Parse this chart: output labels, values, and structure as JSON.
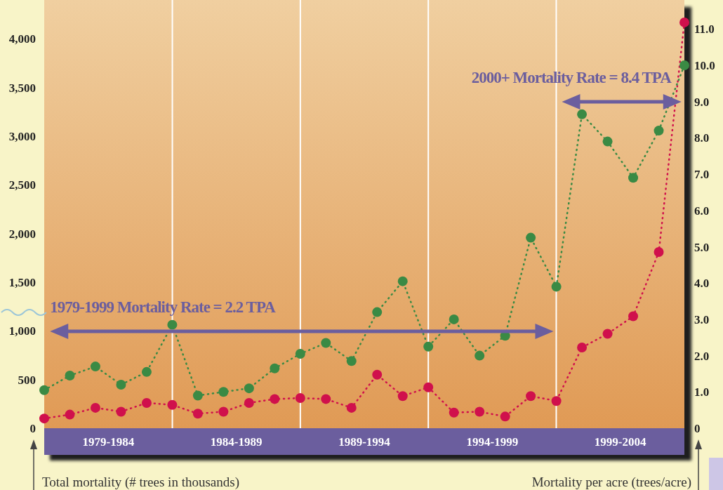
{
  "chart_data": {
    "type": "line",
    "categories": [
      null,
      null,
      null,
      null,
      null,
      null,
      null,
      null,
      null,
      null,
      null,
      null,
      null,
      null,
      null,
      null,
      null,
      null,
      null,
      null,
      null,
      null,
      null,
      null,
      null,
      null
    ],
    "series": [
      {
        "color": "#d0104c",
        "values": [
          100,
          140,
          210,
          170,
          260,
          240,
          150,
          170,
          260,
          300,
          310,
          300,
          210,
          550,
          330,
          420,
          160,
          170,
          120,
          330,
          280,
          830,
          970,
          1150,
          1810,
          4170
        ]
      },
      {
        "color": "#3a8a44",
        "axis": "y2",
        "values": [
          1.05,
          1.45,
          1.7,
          1.2,
          1.55,
          2.85,
          0.9,
          1.0,
          1.1,
          1.65,
          2.05,
          2.35,
          1.85,
          3.2,
          4.05,
          2.25,
          3.0,
          2.0,
          2.55,
          5.25,
          3.9,
          8.65,
          7.9,
          6.9,
          8.2,
          10.0
        ]
      }
    ],
    "ylim": [
      0,
      4400
    ],
    "yticks": [
      0,
      {
        "value": 500,
        "label": "500"
      },
      {
        "value": 1000,
        "label": "1,000"
      },
      {
        "value": 1500,
        "label": "1,500"
      },
      {
        "value": 2000,
        "label": "2,000"
      },
      {
        "value": 2500,
        "label": "2,500"
      },
      {
        "value": 3000,
        "label": "3,000"
      },
      {
        "value": 3500,
        "label": "3,500"
      },
      {
        "value": 4000,
        "label": "4,000"
      }
    ],
    "y2lim": [
      0,
      11.8
    ],
    "y2ticks": [
      0,
      {
        "value": 1,
        "label": "1.0"
      },
      {
        "value": 2,
        "label": "2.0"
      },
      {
        "value": 3,
        "label": "3.0"
      },
      {
        "value": 4,
        "label": "4.0"
      },
      {
        "value": 5,
        "label": "5.0"
      },
      {
        "value": 6,
        "label": "6.0"
      },
      {
        "value": 7,
        "label": "7.0"
      },
      {
        "value": 8,
        "label": "8.0"
      },
      {
        "value": 9,
        "label": "9.0"
      },
      {
        "value": 10,
        "label": "10.0"
      },
      {
        "value": 11,
        "label": "11.0"
      }
    ],
    "annotations": [
      "1979-1984",
      "1984-1989",
      "1989-1994",
      "1994-1999",
      "1999-2004",
      "1979-1999 Mortality Rate = 2.2 TPA",
      "2000+ Mortality Rate = 8.4 TPA",
      "Total mortality (# trees in thousands)",
      "Mortality per acre (trees/acre)"
    ],
    "marker": "circle",
    "line_style": "dotted"
  }
}
